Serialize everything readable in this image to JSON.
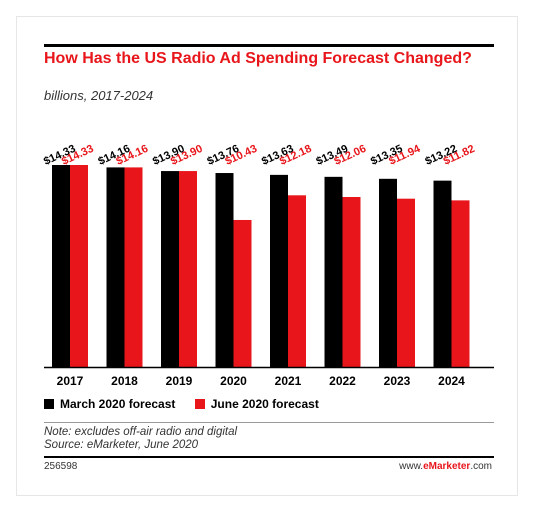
{
  "header": {
    "title": "How Has the US Radio Ad Spending Forecast Changed?",
    "subtitle": "billions, 2017-2024"
  },
  "colors": {
    "march": "#000000",
    "june": "#e8161b"
  },
  "chart_data": {
    "type": "bar",
    "categories": [
      "2017",
      "2018",
      "2019",
      "2020",
      "2021",
      "2022",
      "2023",
      "2024"
    ],
    "series": [
      {
        "name": "March 2020 forecast",
        "values": [
          14.33,
          14.16,
          13.9,
          13.76,
          13.63,
          13.49,
          13.35,
          13.22
        ],
        "labels": [
          "$14.33",
          "$14.16",
          "$13.90",
          "$13.76",
          "$13.63",
          "$13.49",
          "$13.35",
          "$13.22"
        ]
      },
      {
        "name": "June 2020 forecast",
        "values": [
          14.33,
          14.16,
          13.9,
          10.43,
          12.18,
          12.06,
          11.94,
          11.82
        ],
        "labels": [
          "$14.33",
          "$14.16",
          "$13.90",
          "$10.43",
          "$12.18",
          "$12.06",
          "$11.94",
          "$11.82"
        ]
      }
    ],
    "ylim": [
      0,
      14.33
    ],
    "legend_position": "bottom-left",
    "grid": false
  },
  "footer": {
    "note": "Note: excludes off-air radio and digital",
    "source": "Source: eMarketer, June 2020",
    "chart_id": "256598",
    "site_prefix": "www.",
    "site_brand": "eMarketer",
    "site_suffix": ".com"
  }
}
